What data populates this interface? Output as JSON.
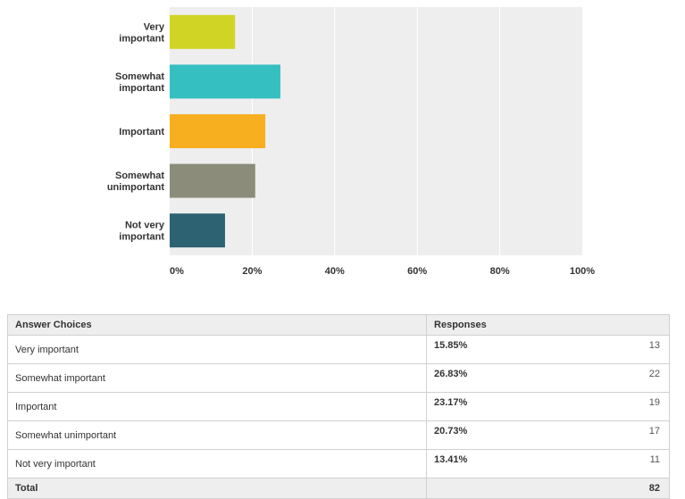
{
  "chart_data": {
    "type": "bar",
    "orientation": "horizontal",
    "categories": [
      [
        "Very",
        "important"
      ],
      [
        "Somewhat",
        "important"
      ],
      [
        "Important"
      ],
      [
        "Somewhat",
        "unimportant"
      ],
      [
        "Not very",
        "important"
      ]
    ],
    "values": [
      15.85,
      26.83,
      23.17,
      20.73,
      13.41
    ],
    "colors": [
      "#d0d424",
      "#35bfc1",
      "#f7af1f",
      "#8b8d7a",
      "#2d6272"
    ],
    "xlim": [
      0,
      100
    ],
    "xticks": [
      "0%",
      "20%",
      "40%",
      "60%",
      "80%",
      "100%"
    ],
    "tick_values": [
      0,
      20,
      40,
      60,
      80,
      100
    ],
    "grid": true,
    "title": "",
    "xlabel": "",
    "ylabel": ""
  },
  "table": {
    "headers": {
      "choices": "Answer Choices",
      "responses": "Responses"
    },
    "rows": [
      {
        "choice": "Very important",
        "percent": "15.85%",
        "count": "13"
      },
      {
        "choice": "Somewhat important",
        "percent": "26.83%",
        "count": "22"
      },
      {
        "choice": "Important",
        "percent": "23.17%",
        "count": "19"
      },
      {
        "choice": "Somewhat unimportant",
        "percent": "20.73%",
        "count": "17"
      },
      {
        "choice": "Not very important",
        "percent": "13.41%",
        "count": "11"
      }
    ],
    "total_label": "Total",
    "total_count": "82"
  }
}
